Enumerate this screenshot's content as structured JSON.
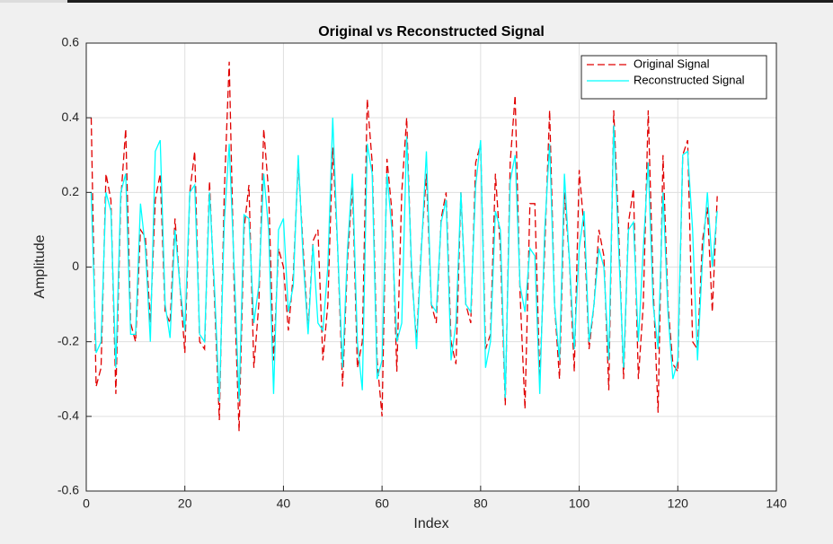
{
  "chart_data": {
    "type": "line",
    "title": "Original vs Reconstructed Signal",
    "x_label": "Index",
    "y_label": "Amplitude",
    "x": [
      1,
      2,
      3,
      4,
      5,
      6,
      7,
      8,
      9,
      10,
      11,
      12,
      13,
      14,
      15,
      16,
      17,
      18,
      19,
      20,
      21,
      22,
      23,
      24,
      25,
      26,
      27,
      28,
      29,
      30,
      31,
      32,
      33,
      34,
      35,
      36,
      37,
      38,
      39,
      40,
      41,
      42,
      43,
      44,
      45,
      46,
      47,
      48,
      49,
      50,
      51,
      52,
      53,
      54,
      55,
      56,
      57,
      58,
      59,
      60,
      61,
      62,
      63,
      64,
      65,
      66,
      67,
      68,
      69,
      70,
      71,
      72,
      73,
      74,
      75,
      76,
      77,
      78,
      79,
      80,
      81,
      82,
      83,
      84,
      85,
      86,
      87,
      88,
      89,
      90,
      91,
      92,
      93,
      94,
      95,
      96,
      97,
      98,
      99,
      100,
      101,
      102,
      103,
      104,
      105,
      106,
      107,
      108,
      109,
      110,
      111,
      112,
      113,
      114,
      115,
      116,
      117,
      118,
      119,
      120,
      121,
      122,
      123,
      124,
      125,
      126,
      127,
      128
    ],
    "series": [
      {
        "name": "Original Signal",
        "color": "#e00000",
        "style": "dashed",
        "values": [
          0.4,
          -0.32,
          -0.27,
          0.25,
          0.18,
          -0.34,
          0.18,
          0.37,
          -0.15,
          -0.2,
          0.1,
          0.08,
          -0.15,
          0.18,
          0.25,
          -0.12,
          -0.15,
          0.13,
          -0.05,
          -0.23,
          0.2,
          0.31,
          -0.2,
          -0.22,
          0.23,
          -0.08,
          -0.41,
          0.2,
          0.55,
          -0.05,
          -0.44,
          0.1,
          0.22,
          -0.27,
          -0.1,
          0.37,
          0.2,
          -0.25,
          0.05,
          0.0,
          -0.17,
          -0.02,
          0.28,
          0.05,
          -0.17,
          0.07,
          0.1,
          -0.25,
          -0.1,
          0.32,
          0.05,
          -0.32,
          0.02,
          0.22,
          -0.27,
          -0.2,
          0.45,
          0.28,
          -0.25,
          -0.4,
          0.29,
          0.15,
          -0.28,
          0.2,
          0.4,
          -0.02,
          -0.2,
          0.06,
          0.25,
          -0.1,
          -0.15,
          0.13,
          0.2,
          -0.2,
          -0.26,
          0.2,
          -0.1,
          -0.15,
          0.28,
          0.33,
          -0.22,
          -0.18,
          0.25,
          0.05,
          -0.37,
          0.28,
          0.46,
          -0.07,
          -0.38,
          0.17,
          0.17,
          -0.3,
          0.05,
          0.42,
          -0.1,
          -0.3,
          0.2,
          0.02,
          -0.28,
          0.26,
          0.1,
          -0.22,
          -0.1,
          0.1,
          0.03,
          -0.33,
          0.42,
          0.1,
          -0.3,
          0.12,
          0.21,
          -0.3,
          -0.1,
          0.42,
          -0.05,
          -0.39,
          0.3,
          -0.1,
          -0.26,
          -0.28,
          0.3,
          0.34,
          -0.2,
          -0.22,
          0.07,
          0.16,
          -0.12,
          0.19
        ]
      },
      {
        "name": "Reconstructed Signal",
        "color": "#00ffff",
        "style": "solid",
        "values": [
          0.2,
          -0.23,
          -0.2,
          0.2,
          0.15,
          -0.27,
          0.2,
          0.25,
          -0.18,
          -0.18,
          0.17,
          0.05,
          -0.2,
          0.31,
          0.34,
          -0.1,
          -0.19,
          0.1,
          -0.05,
          -0.17,
          0.2,
          0.22,
          -0.18,
          -0.2,
          0.2,
          -0.05,
          -0.36,
          0.12,
          0.33,
          0.0,
          -0.36,
          0.14,
          0.13,
          -0.15,
          -0.05,
          0.25,
          0.1,
          -0.34,
          0.1,
          0.13,
          -0.12,
          -0.05,
          0.3,
          0.02,
          -0.18,
          0.06,
          -0.15,
          -0.17,
          0.0,
          0.4,
          0.05,
          -0.27,
          0.05,
          0.25,
          -0.2,
          -0.33,
          0.33,
          0.25,
          -0.3,
          -0.25,
          0.25,
          0.1,
          -0.2,
          -0.15,
          0.35,
          0.0,
          -0.22,
          0.05,
          0.31,
          -0.1,
          -0.12,
          0.12,
          0.18,
          -0.25,
          -0.15,
          0.2,
          -0.1,
          -0.12,
          0.22,
          0.34,
          -0.27,
          -0.2,
          0.15,
          0.1,
          -0.35,
          0.23,
          0.3,
          -0.05,
          -0.12,
          0.05,
          0.03,
          -0.34,
          0.1,
          0.33,
          -0.1,
          -0.25,
          0.25,
          0.02,
          -0.22,
          0.05,
          0.15,
          -0.2,
          -0.1,
          0.05,
          0.0,
          -0.25,
          0.38,
          0.05,
          -0.27,
          0.1,
          0.12,
          -0.2,
          0.05,
          0.28,
          -0.1,
          -0.22,
          0.2,
          -0.12,
          -0.3,
          -0.25,
          0.3,
          0.31,
          0.1,
          -0.25,
          0.02,
          0.2,
          0.0,
          0.15
        ]
      }
    ],
    "xlim": [
      0,
      140
    ],
    "xticks": [
      0,
      20,
      40,
      60,
      80,
      100,
      120,
      140
    ],
    "ylim": [
      -0.6,
      0.6
    ],
    "yticks": [
      -0.6,
      -0.4,
      -0.2,
      0,
      0.2,
      0.4,
      0.6
    ],
    "grid": true,
    "legend": "northeast"
  }
}
